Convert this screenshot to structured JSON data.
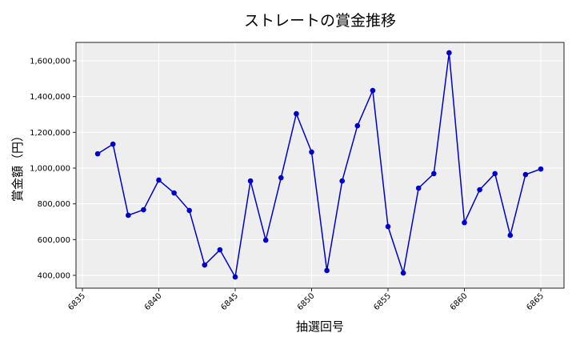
{
  "chart_data": {
    "type": "line",
    "title": "ストレートの賞金推移",
    "xlabel": "抽選回号",
    "ylabel": "賞金額（円）",
    "x": [
      6836,
      6837,
      6838,
      6839,
      6840,
      6841,
      6842,
      6843,
      6844,
      6845,
      6846,
      6847,
      6848,
      6849,
      6850,
      6851,
      6852,
      6853,
      6854,
      6855,
      6856,
      6857,
      6858,
      6859,
      6860,
      6861,
      6862,
      6863,
      6864,
      6865
    ],
    "series": [
      {
        "name": "ストレート",
        "color": "#0000cc",
        "marker": "circle",
        "values": [
          1080000,
          1134000,
          736000,
          767000,
          933000,
          861000,
          763000,
          458000,
          543000,
          391000,
          928000,
          597000,
          946000,
          1304000,
          1090000,
          427000,
          928000,
          1237000,
          1434000,
          673000,
          413000,
          888000,
          969000,
          1645000,
          695000,
          879000,
          969000,
          624000,
          964000,
          995000
        ]
      }
    ],
    "xticks": [
      6835,
      6840,
      6845,
      6850,
      6855,
      6860,
      6865
    ],
    "yticks": [
      400000,
      600000,
      800000,
      1000000,
      1200000,
      1400000,
      1600000
    ],
    "ytick_labels": [
      "400,000",
      "600,000",
      "800,000",
      "1,000,000",
      "1,200,000",
      "1,400,000",
      "1,600,000"
    ],
    "xlim": [
      6834.5,
      6866.5
    ],
    "ylim": [
      330000,
      1710000
    ],
    "grid": true,
    "legend": "none",
    "background": "#eeeeee"
  }
}
